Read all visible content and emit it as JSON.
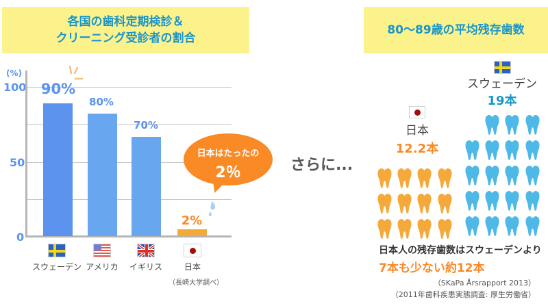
{
  "left_panel": {
    "title_line1": "各国の歯科定期検診＆",
    "title_line2": "クリーニング受診者の割合",
    "y_unit": "(%)",
    "bubble": {
      "line1": "日本はたったの",
      "line2": "2％"
    },
    "source": "（長崎大学調べ）"
  },
  "middle": {
    "connector_text": "さらに..."
  },
  "right_panel": {
    "title": "80〜89歳の平均残存歯数",
    "sweden": {
      "name": "スウェーデン",
      "count": "19本",
      "flag": "sweden-flag"
    },
    "japan": {
      "name": "日本",
      "count": "12.2本",
      "flag": "japan-flag"
    },
    "note_line1": "日本人の残存歯数はスウェーデンより",
    "note_line2": "7本も少ない約12本",
    "source1": "（SKaPa Årsrapport 2013）",
    "source2": "（2011年歯科疾患実態調査: 厚生労働省）"
  },
  "colors": {
    "title_bg": "#fcf28c",
    "title_text": "#1a95c9",
    "bar_blue": "#5b93ee",
    "bar_blue_light": "#68a6ef",
    "bar_orange": "#f4aa3a",
    "accent_orange": "#f98a25",
    "tooth_blue": "#4eb8e6",
    "tooth_orange": "#f5a93a"
  },
  "chart_data": [
    {
      "type": "bar",
      "title": "各国の歯科定期検診＆クリーニング受診者の割合",
      "categories": [
        "スウェーデン",
        "アメリカ",
        "イギリス",
        "日本"
      ],
      "values": [
        90,
        80,
        70,
        2
      ],
      "value_labels": [
        "90%",
        "80%",
        "70%",
        "2%"
      ],
      "ylabel": "(%)",
      "yticks": [
        0,
        50,
        100
      ],
      "ylim": [
        0,
        100
      ],
      "grid": true,
      "annotations": [
        "日本はたったの 2％"
      ],
      "source": "（長崎大学調べ）"
    },
    {
      "type": "pictograph",
      "title": "80〜89歳の平均残存歯数",
      "categories": [
        "日本",
        "スウェーデン"
      ],
      "values": [
        12.2,
        19
      ],
      "value_labels": [
        "12.2本",
        "19本"
      ],
      "icon_counts": [
        12,
        19
      ],
      "annotations": [
        "日本人の残存歯数はスウェーデンより 7本も少ない約12本"
      ],
      "sources": [
        "（SKaPa Årsrapport 2013）",
        "（2011年歯科疾患実態調査: 厚生労働省）"
      ]
    }
  ]
}
